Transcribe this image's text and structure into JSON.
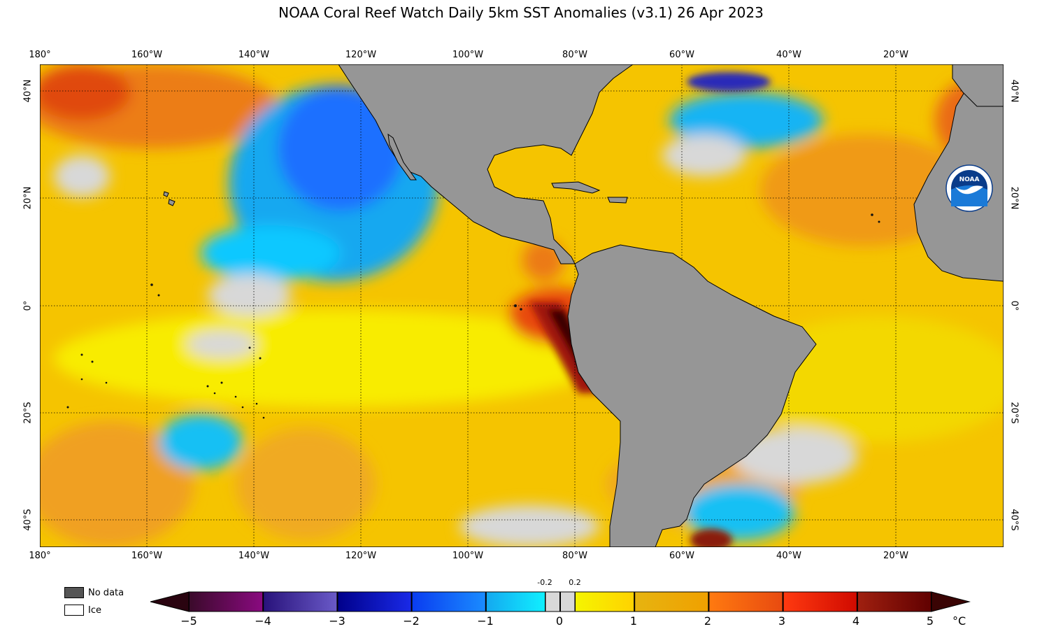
{
  "title": "NOAA Coral Reef Watch Daily 5km SST Anomalies  (v3.1)   26 Apr 2023",
  "map": {
    "lon_labels": [
      "180°",
      "160°W",
      "140°W",
      "120°W",
      "100°W",
      "80°W",
      "60°W",
      "40°W",
      "20°W"
    ],
    "lat_labels": [
      "40°N",
      "20°N",
      "0°",
      "20°S",
      "40°S"
    ],
    "colors": {
      "land": "#969696",
      "no_data": "#555555",
      "ice": "#ffffff"
    }
  },
  "legend": {
    "no_data": "No data",
    "ice": "Ice"
  },
  "colorbar": {
    "ticks": [
      "−5",
      "−4",
      "−3",
      "−2",
      "−1",
      "0",
      "1",
      "2",
      "3",
      "4",
      "5"
    ],
    "small_ticks": [
      "-0.2",
      "0.2"
    ],
    "unit": "°C",
    "range": [
      -5,
      5
    ],
    "bins": [
      {
        "from": -5,
        "to": -4,
        "c0": "#3a0a2a",
        "c1": "#8a0a80"
      },
      {
        "from": -4,
        "to": -3,
        "c0": "#28127a",
        "c1": "#6a5ac8"
      },
      {
        "from": -3,
        "to": -2,
        "c0": "#00008a",
        "c1": "#1a2ae8"
      },
      {
        "from": -2,
        "to": -1,
        "c0": "#0a3cf0",
        "c1": "#1a8cff"
      },
      {
        "from": -1,
        "to": -0.2,
        "c0": "#14a8f0",
        "c1": "#10f0ff"
      },
      {
        "from": -0.2,
        "to": 0.2,
        "c0": "#d8d8d8",
        "c1": "#d8d8d8"
      },
      {
        "from": 0.2,
        "to": 1,
        "c0": "#f5f500",
        "c1": "#ffd200"
      },
      {
        "from": 1,
        "to": 2,
        "c0": "#e6b410",
        "c1": "#f0a000"
      },
      {
        "from": 2,
        "to": 3,
        "c0": "#ff7a10",
        "c1": "#e84a10"
      },
      {
        "from": 3,
        "to": 4,
        "c0": "#ff3a10",
        "c1": "#d00a00"
      },
      {
        "from": 4,
        "to": 5,
        "c0": "#a02010",
        "c1": "#600000"
      }
    ]
  }
}
